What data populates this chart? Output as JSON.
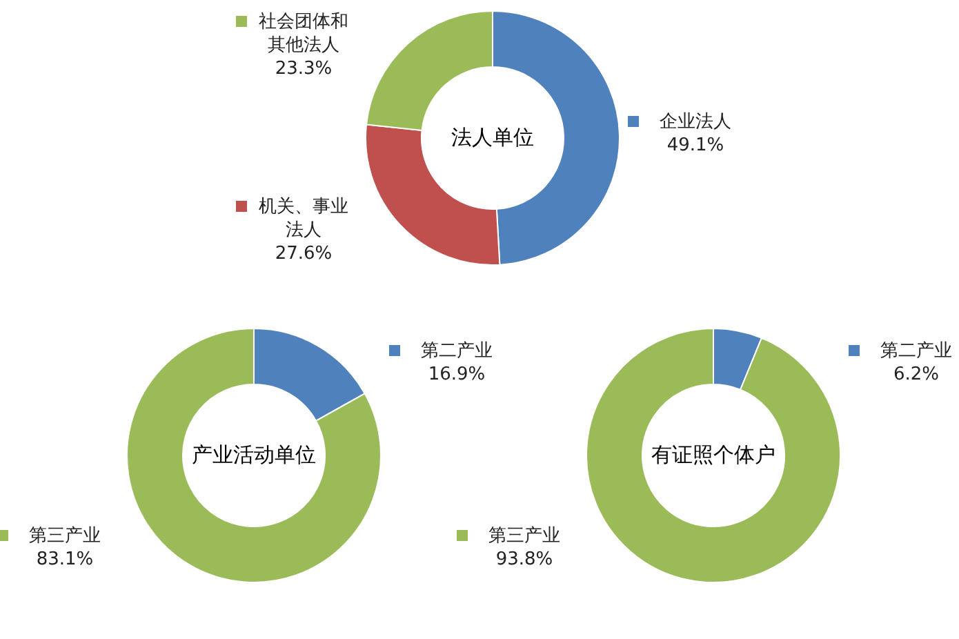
{
  "chart_data": [
    {
      "type": "donut",
      "title": "法人单位",
      "categories": [
        "企业法人",
        "机关、事业法人",
        "社会团体和其他法人"
      ],
      "values": [
        49.1,
        27.6,
        23.3
      ],
      "colors": [
        "#4f81bd",
        "#c0504d",
        "#9bbb59"
      ],
      "value_labels": [
        "49.1%",
        "27.6%",
        "23.3%"
      ],
      "legend": "left"
    },
    {
      "type": "donut",
      "title": "产业活动单位",
      "categories": [
        "第二产业",
        "第三产业"
      ],
      "values": [
        16.9,
        83.1
      ],
      "colors": [
        "#4f81bd",
        "#9bbb59"
      ],
      "value_labels": [
        "16.9%",
        "83.1%"
      ],
      "legend": "left"
    },
    {
      "type": "donut",
      "title": "有证照个体户",
      "categories": [
        "第二产业",
        "第三产业"
      ],
      "values": [
        6.2,
        93.8
      ],
      "colors": [
        "#4f81bd",
        "#9bbb59"
      ],
      "value_labels": [
        "6.2%",
        "93.8%"
      ],
      "legend": "left"
    }
  ]
}
